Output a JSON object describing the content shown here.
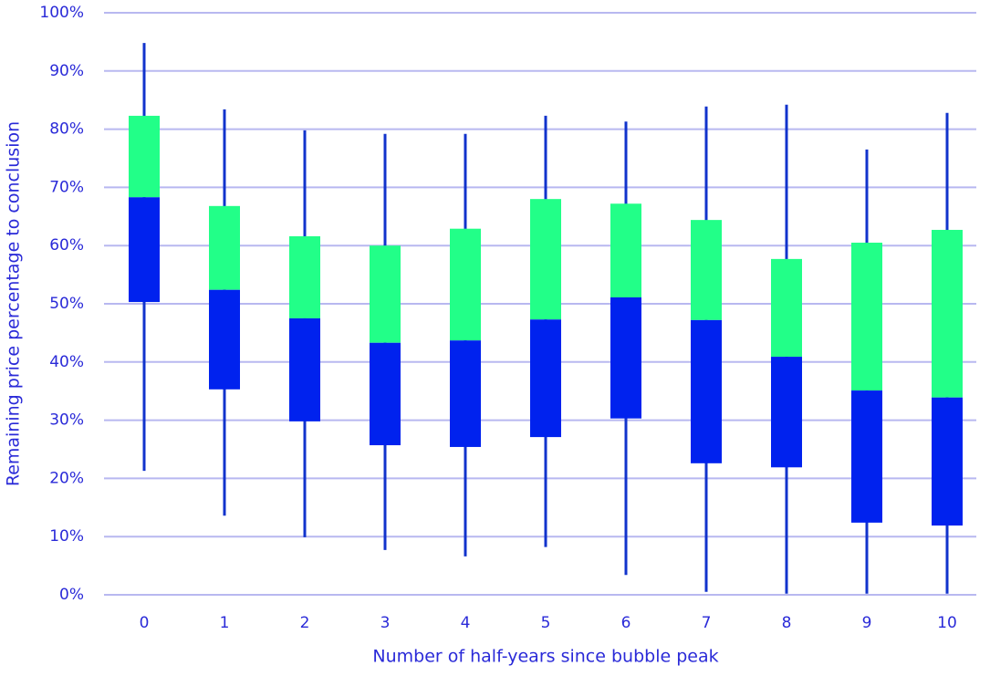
{
  "chart_data": {
    "type": "box",
    "x_label": "Number of half-years since bubble peak",
    "y_label": "Remaining price percentage to conclusion",
    "categories": [
      "0",
      "1",
      "2",
      "3",
      "4",
      "5",
      "6",
      "7",
      "8",
      "9",
      "10"
    ],
    "high": [
      94.8,
      83.4,
      79.8,
      79.2,
      79.2,
      82.3,
      81.3,
      83.9,
      84.2,
      76.5,
      82.8
    ],
    "q3": [
      82.3,
      66.8,
      61.6,
      60.0,
      62.9,
      68.0,
      67.2,
      64.4,
      57.7,
      60.5,
      62.7
    ],
    "median": [
      68.3,
      52.4,
      47.5,
      43.3,
      43.7,
      47.3,
      51.1,
      47.2,
      40.9,
      35.1,
      33.9
    ],
    "q1": [
      50.3,
      35.3,
      29.8,
      25.7,
      25.4,
      27.1,
      30.3,
      22.6,
      21.9,
      12.4,
      11.9
    ],
    "low": [
      21.3,
      13.6,
      9.9,
      7.7,
      6.6,
      8.2,
      3.4,
      0.5,
      0.2,
      0.2,
      0.2
    ],
    "upper_color": "#22ff88",
    "lower_color": "#0022ee",
    "whisker_color": "#1133cc",
    "ylim": [
      0,
      100
    ],
    "yticks": [
      {
        "value": 0,
        "label": "0%"
      },
      {
        "value": 10,
        "label": "10%"
      },
      {
        "value": 20,
        "label": "20%"
      },
      {
        "value": 30,
        "label": "30%"
      },
      {
        "value": 40,
        "label": "40%"
      },
      {
        "value": 50,
        "label": "50%"
      },
      {
        "value": 60,
        "label": "60%"
      },
      {
        "value": 70,
        "label": "70%"
      },
      {
        "value": 80,
        "label": "80%"
      },
      {
        "value": 90,
        "label": "90%"
      },
      {
        "value": 100,
        "label": "100%"
      }
    ],
    "grid": true
  }
}
